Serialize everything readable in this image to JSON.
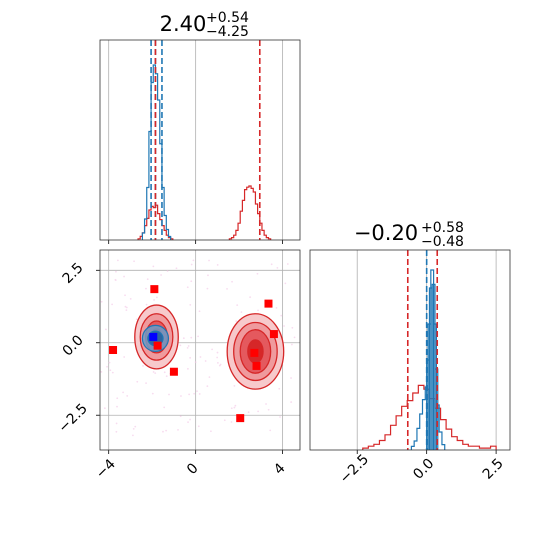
{
  "chart_data": {
    "type": "corner",
    "colors": {
      "red": "#d62728",
      "blue": "#1f77b4",
      "marker_red": "#ff0000",
      "marker_blue": "#0000ff",
      "grid": "#b0b0b0"
    },
    "titles": [
      {
        "main": "2.40",
        "sup": "+0.54",
        "sub": "−4.25"
      },
      {
        "main": "−0.20",
        "sup": "+0.58",
        "sub": "−0.48"
      }
    ],
    "x_param1": {
      "range": [
        -4.4,
        4.8
      ],
      "ticks": [
        -4,
        0,
        4
      ],
      "tick_labels": [
        "−4",
        "0",
        "4"
      ]
    },
    "y_param2": {
      "range": [
        -3.7,
        3.2
      ],
      "ticks": [
        2.5,
        0.0,
        -2.5
      ],
      "tick_labels": [
        "2.5",
        "0.0",
        "−2.5"
      ]
    },
    "x_param2": {
      "range": [
        -4.2,
        3.0
      ],
      "ticks": [
        -2.5,
        0.0,
        2.5
      ],
      "tick_labels": [
        "−2.5",
        "0.0",
        "2.5"
      ]
    },
    "hist1": {
      "red_quantile_lines": [
        -1.85,
        2.95
      ],
      "blue_quantile_lines": [
        -2.05,
        -1.85,
        -1.55
      ],
      "red_hist": {
        "bins": [
          -2.6,
          -2.5,
          -2.4,
          -2.3,
          -2.2,
          -2.1,
          -2.0,
          -1.9,
          -1.8,
          -1.7,
          -1.6,
          -1.5,
          -1.4,
          -1.3,
          -1.2,
          -1.1,
          1.6,
          1.7,
          1.8,
          1.9,
          2.0,
          2.1,
          2.2,
          2.3,
          2.4,
          2.5,
          2.6,
          2.7,
          2.8,
          2.9,
          3.0,
          3.1,
          3.2,
          3.3,
          3.4
        ],
        "values": [
          0.01,
          0.03,
          0.06,
          0.12,
          0.18,
          0.25,
          0.28,
          0.27,
          0.29,
          0.22,
          0.17,
          0.12,
          0.08,
          0.04,
          0.02,
          0.01,
          0.01,
          0.02,
          0.04,
          0.08,
          0.14,
          0.24,
          0.33,
          0.42,
          0.44,
          0.45,
          0.43,
          0.4,
          0.3,
          0.22,
          0.14,
          0.08,
          0.04,
          0.02,
          0.01
        ]
      },
      "blue_hist": {
        "bins": [
          -2.4,
          -2.3,
          -2.2,
          -2.1,
          -2.0,
          -1.9,
          -1.8,
          -1.7,
          -1.6,
          -1.5,
          -1.4,
          -1.3,
          -1.2
        ],
        "values": [
          0.04,
          0.12,
          0.3,
          0.62,
          0.9,
          1.0,
          0.95,
          0.8,
          0.55,
          0.3,
          0.14,
          0.06,
          0.02
        ]
      }
    },
    "hist2": {
      "red_quantile_lines": [
        -0.68,
        0.38
      ],
      "blue_quantile_lines": [
        0.0
      ],
      "red_hist": {
        "bins": [
          -2.2,
          -2.0,
          -1.8,
          -1.6,
          -1.4,
          -1.2,
          -1.0,
          -0.8,
          -0.6,
          -0.4,
          -0.2,
          0.0,
          0.2,
          0.4,
          0.6,
          0.8,
          1.0,
          1.2,
          1.4,
          1.6,
          1.8,
          2.0,
          2.2,
          2.4
        ],
        "values": [
          0.01,
          0.02,
          0.03,
          0.05,
          0.08,
          0.13,
          0.18,
          0.23,
          0.26,
          0.3,
          0.34,
          0.32,
          0.27,
          0.22,
          0.16,
          0.11,
          0.07,
          0.05,
          0.03,
          0.02,
          0.02,
          0.01,
          0.01,
          0.02
        ]
      },
      "blue_hist": {
        "bins": [
          -0.5,
          -0.4,
          -0.3,
          -0.2,
          -0.1,
          0.0,
          0.05,
          0.1,
          0.15,
          0.2,
          0.25,
          0.3,
          0.35,
          0.4,
          0.5,
          0.6
        ],
        "values": [
          0.02,
          0.05,
          0.12,
          0.2,
          0.28,
          0.35,
          0.5,
          0.7,
          0.9,
          1.0,
          0.92,
          0.7,
          0.45,
          0.25,
          0.1,
          0.03
        ]
      }
    },
    "joint": {
      "red_markers": [
        {
          "x": -1.9,
          "y": 1.85
        },
        {
          "x": -3.8,
          "y": -0.25
        },
        {
          "x": -1.75,
          "y": -0.1
        },
        {
          "x": -1.0,
          "y": -1.0
        },
        {
          "x": 3.35,
          "y": 1.35
        },
        {
          "x": 3.6,
          "y": 0.3
        },
        {
          "x": 2.7,
          "y": -0.35
        },
        {
          "x": 2.8,
          "y": -0.8
        },
        {
          "x": 2.05,
          "y": -2.6
        }
      ],
      "blue_marker": {
        "x": -1.95,
        "y": 0.2
      },
      "clusters": [
        {
          "cx": -1.8,
          "cy": 0.2,
          "rx": [
            1.0,
            0.75,
            0.5,
            0.25
          ],
          "ry": [
            1.1,
            0.8,
            0.55,
            0.28
          ]
        },
        {
          "cx": 2.75,
          "cy": -0.3,
          "rx": [
            1.3,
            1.0,
            0.7,
            0.35
          ],
          "ry": [
            1.3,
            1.0,
            0.75,
            0.4
          ]
        }
      ],
      "blue_cluster": {
        "cx": -1.85,
        "cy": 0.15,
        "rx": [
          0.6,
          0.35
        ],
        "ry": [
          0.45,
          0.25
        ]
      }
    }
  }
}
